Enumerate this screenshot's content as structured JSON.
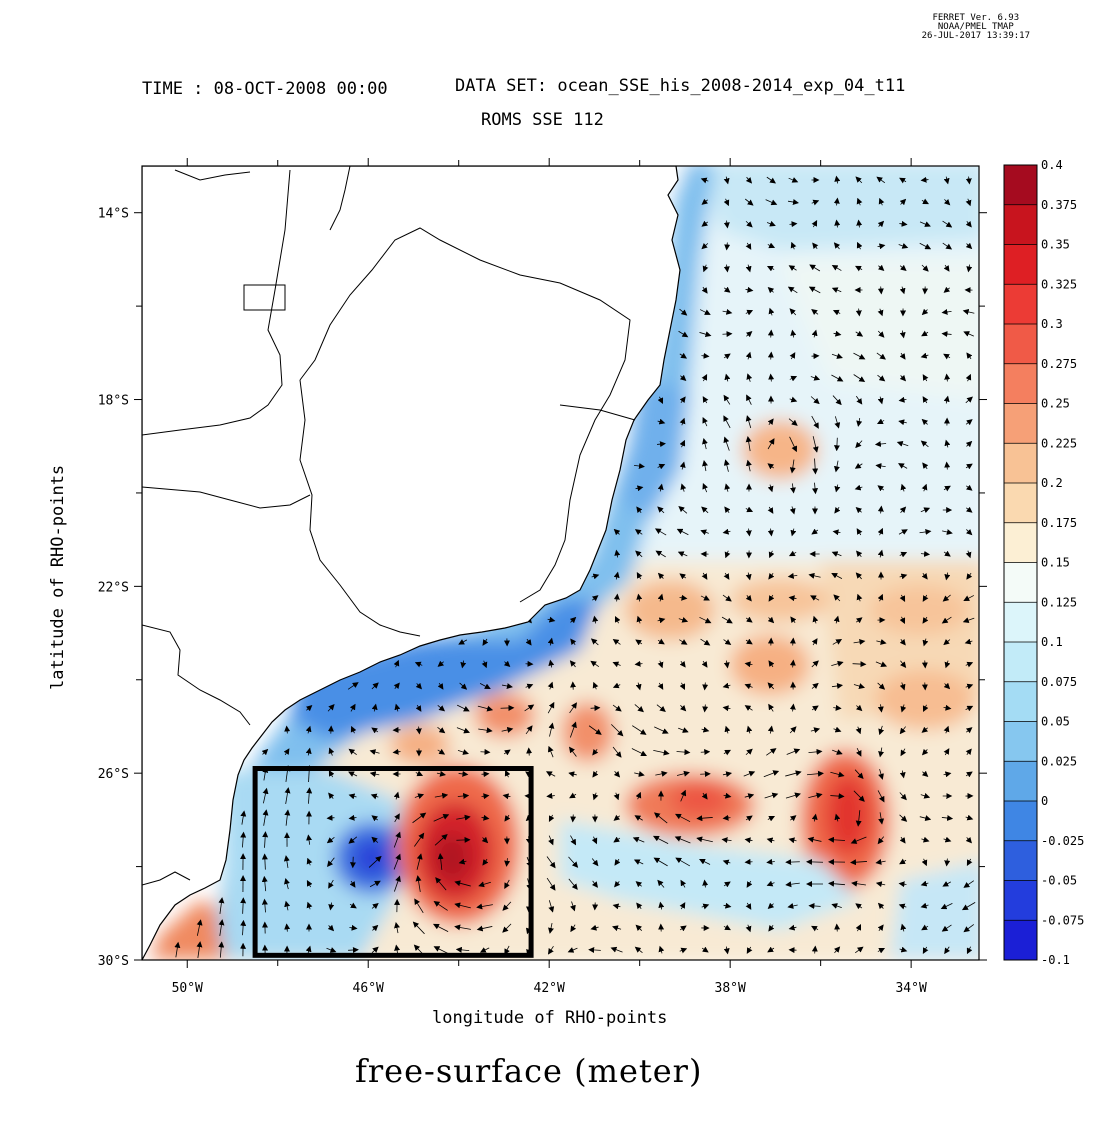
{
  "stamp": {
    "line1": "FERRET Ver. 6.93",
    "line2": "NOAA/PMEL TMAP",
    "line3": "26-JUL-2017 13:39:17"
  },
  "header": {
    "time": "TIME : 08-OCT-2008 00:00",
    "dataset": "DATA SET: ocean_SSE_his_2008-2014_exp_04_t11",
    "subtitle": "ROMS SSE 112"
  },
  "axes": {
    "xlabel": "longitude of RHO-points",
    "ylabel": "latitude of RHO-points",
    "lon_range": [
      -51,
      -32.5
    ],
    "lat_range": [
      -30,
      -13
    ],
    "lon_ticks": [
      {
        "value": -50,
        "label": "50°W"
      },
      {
        "value": -46,
        "label": "46°W"
      },
      {
        "value": -42,
        "label": "42°W"
      },
      {
        "value": -38,
        "label": "38°W"
      },
      {
        "value": -34,
        "label": "34°W"
      }
    ],
    "lat_ticks": [
      {
        "value": -14,
        "label": "14°S"
      },
      {
        "value": -18,
        "label": "18°S"
      },
      {
        "value": -22,
        "label": "22°S"
      },
      {
        "value": -26,
        "label": "26°S"
      },
      {
        "value": -30,
        "label": "30°S"
      }
    ]
  },
  "variable_title": "free-surface (meter)",
  "colorbar": {
    "labels": [
      "0.4",
      "0.375",
      "0.35",
      "0.325",
      "0.3",
      "0.275",
      "0.25",
      "0.225",
      "0.2",
      "0.175",
      "0.15",
      "0.125",
      "0.1",
      "0.075",
      "0.05",
      "0.025",
      "0",
      "-0.025",
      "-0.05",
      "-0.075",
      "-0.1"
    ],
    "colors": [
      "#a50b1f",
      "#c8141e",
      "#de1f24",
      "#ec3b35",
      "#f05a47",
      "#f47f5f",
      "#f6a077",
      "#f8c295",
      "#fad9b0",
      "#fcefd4",
      "#f4fbf8",
      "#dcf5fa",
      "#c2ebf8",
      "#a4dcf4",
      "#86c7ef",
      "#5fa8e8",
      "#3f86e4",
      "#2e5fde",
      "#233ddd",
      "#1b1fd6"
    ]
  },
  "region_box": {
    "lon": [
      -48.5,
      -42.4
    ],
    "lat": [
      -29.9,
      -25.9
    ]
  },
  "chart_data": {
    "type": "heatmap",
    "title": "free-surface (meter)",
    "xlabel": "longitude of RHO-points",
    "ylabel": "latitude of RHO-points",
    "xlim": [
      -51,
      -32.5
    ],
    "ylim": [
      -30,
      -13
    ],
    "value_range": [
      -0.1,
      0.4
    ],
    "features": [
      {
        "lon": -44.0,
        "lat": -27.8,
        "value": 0.37
      },
      {
        "lon": -46.2,
        "lat": -27.6,
        "value": -0.05
      },
      {
        "lon": -35.5,
        "lat": -26.8,
        "value": 0.3
      },
      {
        "lon": -38.8,
        "lat": -26.6,
        "value": 0.28
      },
      {
        "lon": -43.6,
        "lat": -24.7,
        "value": 0.26
      },
      {
        "lon": -41.2,
        "lat": -24.9,
        "value": 0.25
      },
      {
        "lon": -37.0,
        "lat": -19.0,
        "value": 0.23
      },
      {
        "lon": -48.5,
        "lat": -24.8,
        "value": 0.0
      },
      {
        "lon": -45.5,
        "lat": -24.3,
        "value": 0.02
      },
      {
        "lon": -40.0,
        "lat": -18.0,
        "value": 0.06
      }
    ]
  }
}
